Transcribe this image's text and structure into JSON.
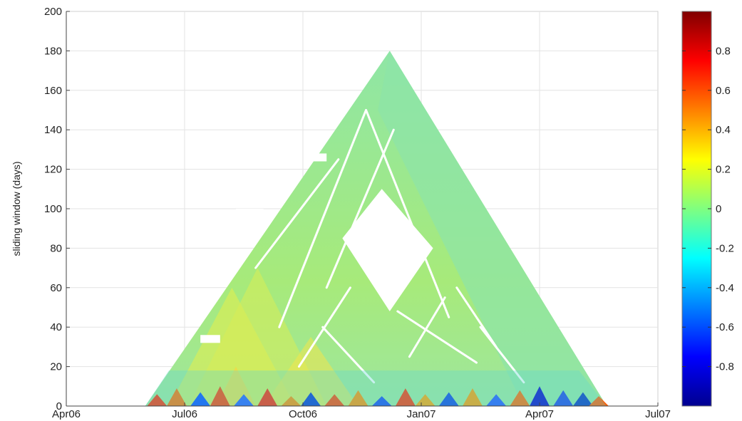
{
  "chart_data": {
    "type": "heatmap",
    "title": "",
    "xlabel": "",
    "ylabel": "sliding window (days)",
    "x_ticks": [
      "Apr06",
      "Jul06",
      "Oct06",
      "Jan07",
      "Apr07",
      "Jul07"
    ],
    "y_ticks": [
      "0",
      "20",
      "40",
      "60",
      "80",
      "100",
      "120",
      "140",
      "160",
      "180",
      "200"
    ],
    "ylim": [
      0,
      200
    ],
    "xlim": [
      "Apr06",
      "Jul07"
    ],
    "grid": true,
    "colormap": "jet",
    "colorbar": {
      "range": [
        -1,
        1
      ],
      "ticks": [
        "0.8",
        "0.6",
        "0.4",
        "0.2",
        "0",
        "-0.2",
        "-0.4",
        "-0.6",
        "-0.8"
      ],
      "tick_values": [
        0.8,
        0.6,
        0.4,
        0.2,
        0,
        -0.2,
        -0.4,
        -0.6,
        -0.8
      ]
    },
    "triangle_region": {
      "start": "Jun 2006",
      "end": "May 2007",
      "apex_window_days": 180,
      "apex_date": "Dec 2006"
    },
    "value_summary": "correlation values mostly near 0 (green), yellow/orange in lower-left diagonals, strong red and blue at small window sizes"
  }
}
